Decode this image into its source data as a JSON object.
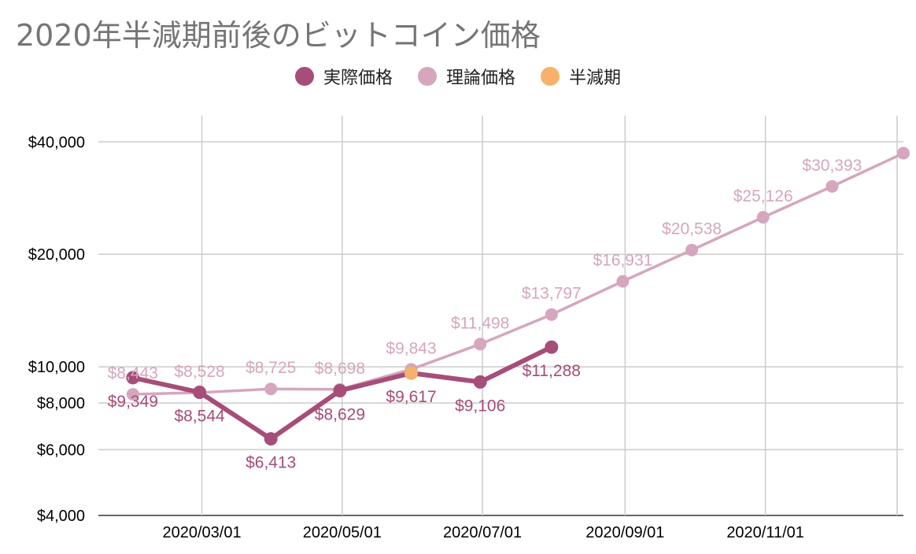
{
  "chart_data": {
    "type": "line",
    "title": "2020年半減期前後のビットコイン価格",
    "xlabel": "",
    "ylabel": "",
    "y_scale": "log",
    "ylim": [
      4000,
      47000
    ],
    "xlim": [
      "2020-01-16",
      "2020-12-31"
    ],
    "grid": true,
    "legend_position": "top",
    "y_ticks": [
      {
        "value": 4000,
        "label": "$4,000"
      },
      {
        "value": 6000,
        "label": "$6,000"
      },
      {
        "value": 8000,
        "label": "$8,000"
      },
      {
        "value": 10000,
        "label": "$10,000"
      },
      {
        "value": 20000,
        "label": "$20,000"
      },
      {
        "value": 40000,
        "label": "$40,000"
      }
    ],
    "x_ticks": [
      {
        "value": "2020-03-01",
        "label": "2020/03/01"
      },
      {
        "value": "2020-05-01",
        "label": "2020/05/01"
      },
      {
        "value": "2020-07-01",
        "label": "2020/07/01"
      },
      {
        "value": "2020-09-01",
        "label": "2020/09/01"
      },
      {
        "value": "2020-11-01",
        "label": "2020/11/01"
      }
    ],
    "series": [
      {
        "name": "実際価格",
        "color": "#a64d79",
        "points": [
          {
            "x": "2020-01-31",
            "y": 9349,
            "label": "$9,349"
          },
          {
            "x": "2020-02-29",
            "y": 8544,
            "label": "$8,544"
          },
          {
            "x": "2020-03-31",
            "y": 6413,
            "label": "$6,413"
          },
          {
            "x": "2020-04-30",
            "y": 8629,
            "label": "$8,629"
          },
          {
            "x": "2020-05-31",
            "y": 9617,
            "label": "$9,617"
          },
          {
            "x": "2020-06-30",
            "y": 9106,
            "label": "$9,106"
          },
          {
            "x": "2020-07-31",
            "y": 11288,
            "label": "$11,288"
          }
        ]
      },
      {
        "name": "理論価格",
        "color": "#d5a6bd",
        "points": [
          {
            "x": "2020-01-31",
            "y": 8443,
            "label": "$8,443"
          },
          {
            "x": "2020-02-29",
            "y": 8528,
            "label": "$8,528"
          },
          {
            "x": "2020-03-31",
            "y": 8725,
            "label": "$8,725"
          },
          {
            "x": "2020-04-30",
            "y": 8698,
            "label": "$8,698"
          },
          {
            "x": "2020-05-31",
            "y": 9843,
            "label": "$9,843"
          },
          {
            "x": "2020-06-30",
            "y": 11498,
            "label": "$11,498"
          },
          {
            "x": "2020-07-31",
            "y": 13797,
            "label": "$13,797"
          },
          {
            "x": "2020-08-31",
            "y": 16931,
            "label": "$16,931"
          },
          {
            "x": "2020-09-30",
            "y": 20538,
            "label": "$20,538"
          },
          {
            "x": "2020-10-31",
            "y": 25126,
            "label": "$25,126"
          },
          {
            "x": "2020-11-30",
            "y": 30393,
            "label": "$30,393"
          },
          {
            "x": "2020-12-31",
            "y": 37300,
            "label": ""
          }
        ]
      },
      {
        "name": "半減期",
        "color": "#f6b26b",
        "points": [
          {
            "x": "2020-05-31",
            "y": 9617,
            "label": ""
          }
        ]
      }
    ]
  }
}
